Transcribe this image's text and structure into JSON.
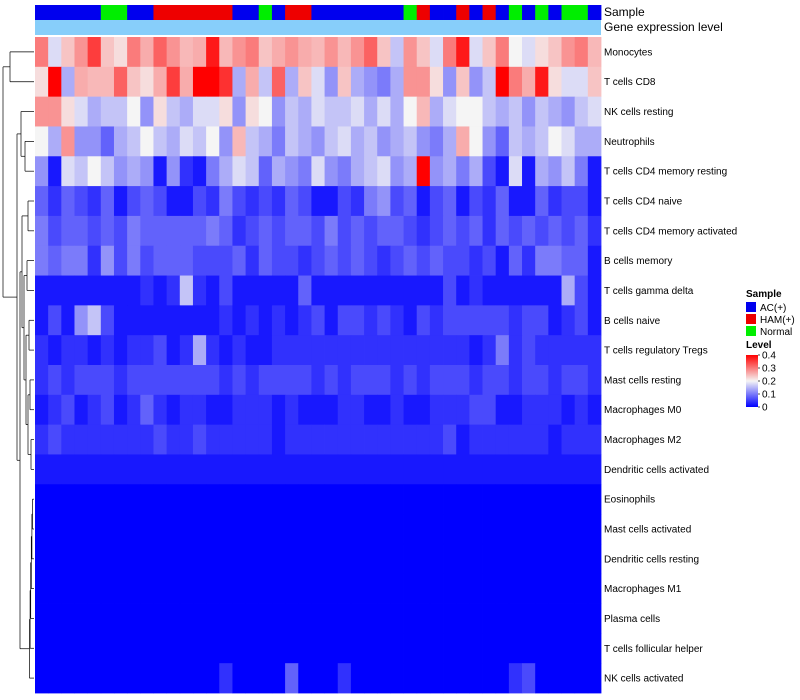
{
  "chart_data": {
    "type": "heatmap",
    "title": "",
    "annotation_labels": {
      "sample": "Sample",
      "gene_expression": "Gene expression level"
    },
    "rows": [
      "Monocytes",
      "T cells CD8",
      "NK cells resting",
      "Neutrophils",
      "T cells CD4 memory resting",
      "T cells CD4 naive",
      "T cells CD4 memory activated",
      "B cells memory",
      "T cells gamma delta",
      "B cells naive",
      "T cells regulatory  Tregs",
      "Mast cells resting",
      "Macrophages M0",
      "Macrophages M2",
      "Dendritic cells activated",
      "Eosinophils",
      "Mast cells activated",
      "Dendritic cells resting",
      "Macrophages M1",
      "Plasma cells",
      "T cells follicular helper",
      "NK cells activated"
    ],
    "column_groups": [
      "AC",
      "AC",
      "AC",
      "AC",
      "AC",
      "Normal",
      "Normal",
      "AC",
      "AC",
      "HAM",
      "HAM",
      "HAM",
      "HAM",
      "HAM",
      "HAM",
      "AC",
      "AC",
      "Normal",
      "AC",
      "HAM",
      "HAM",
      "AC",
      "AC",
      "AC",
      "AC",
      "AC",
      "AC",
      "AC",
      "Normal",
      "HAM",
      "AC",
      "AC",
      "HAM",
      "AC",
      "HAM",
      "AC",
      "Normal",
      "AC",
      "Normal",
      "AC",
      "Normal",
      "Normal",
      "AC"
    ],
    "values": [
      [
        0.3,
        0.18,
        0.24,
        0.28,
        0.35,
        0.24,
        0.22,
        0.3,
        0.26,
        0.32,
        0.28,
        0.25,
        0.26,
        0.38,
        0.25,
        0.28,
        0.3,
        0.24,
        0.26,
        0.28,
        0.26,
        0.25,
        0.28,
        0.25,
        0.28,
        0.32,
        0.24,
        0.16,
        0.28,
        0.24,
        0.18,
        0.3,
        0.38,
        0.18,
        0.24,
        0.3,
        0.2,
        0.18,
        0.22,
        0.24,
        0.28,
        0.3,
        0.25
      ],
      [
        0.22,
        0.4,
        0.14,
        0.26,
        0.25,
        0.25,
        0.32,
        0.24,
        0.22,
        0.26,
        0.35,
        0.26,
        0.4,
        0.4,
        0.36,
        0.14,
        0.26,
        0.16,
        0.32,
        0.14,
        0.24,
        0.18,
        0.12,
        0.24,
        0.14,
        0.12,
        0.1,
        0.14,
        0.28,
        0.28,
        0.22,
        0.12,
        0.24,
        0.12,
        0.16,
        0.4,
        0.3,
        0.26,
        0.38,
        0.22,
        0.18,
        0.18,
        0.24
      ],
      [
        0.28,
        0.28,
        0.22,
        0.18,
        0.14,
        0.16,
        0.16,
        0.2,
        0.12,
        0.22,
        0.16,
        0.14,
        0.18,
        0.18,
        0.22,
        0.12,
        0.22,
        0.2,
        0.12,
        0.16,
        0.14,
        0.18,
        0.16,
        0.16,
        0.18,
        0.14,
        0.18,
        0.14,
        0.2,
        0.25,
        0.14,
        0.18,
        0.2,
        0.2,
        0.16,
        0.14,
        0.16,
        0.12,
        0.16,
        0.14,
        0.12,
        0.16,
        0.18
      ],
      [
        0.2,
        0.14,
        0.28,
        0.12,
        0.12,
        0.08,
        0.14,
        0.16,
        0.2,
        0.16,
        0.14,
        0.18,
        0.16,
        0.2,
        0.12,
        0.25,
        0.16,
        0.14,
        0.1,
        0.16,
        0.14,
        0.12,
        0.16,
        0.18,
        0.14,
        0.16,
        0.12,
        0.14,
        0.16,
        0.12,
        0.1,
        0.14,
        0.26,
        0.2,
        0.12,
        0.08,
        0.16,
        0.14,
        0.16,
        0.2,
        0.18,
        0.14,
        0.14
      ],
      [
        0.12,
        0.02,
        0.18,
        0.16,
        0.2,
        0.16,
        0.12,
        0.14,
        0.12,
        0.02,
        0.12,
        0.04,
        0.02,
        0.1,
        0.14,
        0.18,
        0.16,
        0.08,
        0.14,
        0.12,
        0.1,
        0.18,
        0.12,
        0.1,
        0.14,
        0.16,
        0.18,
        0.12,
        0.14,
        0.4,
        0.12,
        0.14,
        0.1,
        0.14,
        0.06,
        0.02,
        0.18,
        0.02,
        0.14,
        0.12,
        0.16,
        0.1,
        0.02
      ],
      [
        0.08,
        0.04,
        0.08,
        0.06,
        0.04,
        0.08,
        0.02,
        0.06,
        0.08,
        0.06,
        0.02,
        0.02,
        0.06,
        0.04,
        0.1,
        0.06,
        0.04,
        0.06,
        0.04,
        0.08,
        0.06,
        0.02,
        0.02,
        0.06,
        0.04,
        0.1,
        0.12,
        0.06,
        0.08,
        0.02,
        0.06,
        0.08,
        0.02,
        0.06,
        0.04,
        0.08,
        0.02,
        0.02,
        0.08,
        0.04,
        0.06,
        0.06,
        0.02
      ],
      [
        0.1,
        0.06,
        0.08,
        0.08,
        0.06,
        0.08,
        0.06,
        0.1,
        0.08,
        0.08,
        0.08,
        0.08,
        0.08,
        0.1,
        0.08,
        0.04,
        0.06,
        0.08,
        0.06,
        0.08,
        0.08,
        0.06,
        0.1,
        0.06,
        0.08,
        0.06,
        0.08,
        0.08,
        0.06,
        0.04,
        0.06,
        0.08,
        0.06,
        0.08,
        0.04,
        0.08,
        0.06,
        0.08,
        0.06,
        0.08,
        0.06,
        0.08,
        0.04
      ],
      [
        0.1,
        0.08,
        0.1,
        0.1,
        0.04,
        0.12,
        0.06,
        0.1,
        0.06,
        0.08,
        0.08,
        0.08,
        0.06,
        0.06,
        0.06,
        0.08,
        0.04,
        0.08,
        0.06,
        0.06,
        0.04,
        0.06,
        0.08,
        0.06,
        0.08,
        0.06,
        0.04,
        0.06,
        0.08,
        0.06,
        0.08,
        0.06,
        0.06,
        0.04,
        0.06,
        0.02,
        0.08,
        0.04,
        0.1,
        0.1,
        0.08,
        0.08,
        0.02
      ],
      [
        0.02,
        0.02,
        0.02,
        0.02,
        0.02,
        0.02,
        0.02,
        0.02,
        0.04,
        0.02,
        0.04,
        0.16,
        0.04,
        0.02,
        0.06,
        0.02,
        0.02,
        0.02,
        0.02,
        0.02,
        0.08,
        0.02,
        0.02,
        0.02,
        0.02,
        0.02,
        0.02,
        0.02,
        0.02,
        0.02,
        0.02,
        0.06,
        0.02,
        0.04,
        0.02,
        0.02,
        0.02,
        0.02,
        0.02,
        0.02,
        0.14,
        0.06,
        0.02
      ],
      [
        0.02,
        0.06,
        0.02,
        0.12,
        0.16,
        0.06,
        0.02,
        0.02,
        0.02,
        0.02,
        0.02,
        0.02,
        0.02,
        0.02,
        0.04,
        0.02,
        0.04,
        0.02,
        0.04,
        0.02,
        0.04,
        0.06,
        0.02,
        0.06,
        0.06,
        0.04,
        0.06,
        0.04,
        0.02,
        0.06,
        0.04,
        0.06,
        0.06,
        0.06,
        0.06,
        0.06,
        0.04,
        0.06,
        0.06,
        0.02,
        0.04,
        0.06,
        0.02
      ],
      [
        0.04,
        0.02,
        0.04,
        0.04,
        0.02,
        0.04,
        0.02,
        0.04,
        0.04,
        0.06,
        0.02,
        0.04,
        0.14,
        0.04,
        0.02,
        0.04,
        0.02,
        0.02,
        0.04,
        0.04,
        0.04,
        0.04,
        0.04,
        0.04,
        0.04,
        0.04,
        0.04,
        0.04,
        0.04,
        0.04,
        0.04,
        0.04,
        0.04,
        0.02,
        0.04,
        0.1,
        0.04,
        0.06,
        0.04,
        0.04,
        0.04,
        0.04,
        0.04
      ],
      [
        0.04,
        0.06,
        0.04,
        0.06,
        0.06,
        0.06,
        0.04,
        0.06,
        0.06,
        0.06,
        0.06,
        0.06,
        0.06,
        0.06,
        0.04,
        0.06,
        0.04,
        0.06,
        0.06,
        0.06,
        0.06,
        0.04,
        0.06,
        0.04,
        0.06,
        0.06,
        0.06,
        0.04,
        0.06,
        0.04,
        0.06,
        0.06,
        0.06,
        0.04,
        0.06,
        0.06,
        0.04,
        0.06,
        0.06,
        0.04,
        0.06,
        0.06,
        0.04
      ],
      [
        0.02,
        0.04,
        0.06,
        0.02,
        0.04,
        0.06,
        0.02,
        0.04,
        0.08,
        0.04,
        0.02,
        0.04,
        0.04,
        0.02,
        0.02,
        0.04,
        0.04,
        0.04,
        0.02,
        0.04,
        0.02,
        0.02,
        0.02,
        0.04,
        0.04,
        0.02,
        0.02,
        0.04,
        0.02,
        0.02,
        0.04,
        0.04,
        0.04,
        0.06,
        0.06,
        0.02,
        0.02,
        0.04,
        0.04,
        0.04,
        0.02,
        0.04,
        0.02
      ],
      [
        0.04,
        0.06,
        0.04,
        0.04,
        0.04,
        0.04,
        0.04,
        0.04,
        0.04,
        0.06,
        0.04,
        0.04,
        0.06,
        0.04,
        0.04,
        0.04,
        0.04,
        0.04,
        0.02,
        0.04,
        0.04,
        0.04,
        0.04,
        0.04,
        0.04,
        0.04,
        0.04,
        0.04,
        0.04,
        0.04,
        0.04,
        0.06,
        0.02,
        0.04,
        0.04,
        0.04,
        0.04,
        0.04,
        0.04,
        0.02,
        0.04,
        0.04,
        0.04
      ],
      [
        0.02,
        0.02,
        0.02,
        0.02,
        0.02,
        0.02,
        0.02,
        0.02,
        0.02,
        0.02,
        0.02,
        0.02,
        0.02,
        0.02,
        0.02,
        0.02,
        0.02,
        0.02,
        0.02,
        0.02,
        0.02,
        0.02,
        0.02,
        0.02,
        0.02,
        0.02,
        0.02,
        0.02,
        0.02,
        0.02,
        0.02,
        0.02,
        0.02,
        0.02,
        0.02,
        0.02,
        0.02,
        0.02,
        0.02,
        0.02,
        0.02,
        0.02,
        0.02
      ],
      [
        0,
        0,
        0,
        0,
        0,
        0,
        0,
        0,
        0,
        0,
        0,
        0,
        0,
        0,
        0,
        0,
        0,
        0,
        0,
        0,
        0,
        0,
        0,
        0,
        0,
        0,
        0,
        0,
        0,
        0,
        0,
        0,
        0,
        0,
        0,
        0,
        0,
        0,
        0,
        0,
        0,
        0,
        0
      ],
      [
        0,
        0,
        0,
        0,
        0,
        0,
        0,
        0,
        0,
        0,
        0,
        0,
        0,
        0,
        0,
        0,
        0,
        0,
        0,
        0,
        0,
        0,
        0,
        0,
        0,
        0,
        0,
        0,
        0,
        0,
        0,
        0,
        0,
        0,
        0,
        0,
        0,
        0,
        0,
        0,
        0,
        0,
        0
      ],
      [
        0,
        0,
        0,
        0,
        0,
        0,
        0,
        0,
        0,
        0,
        0,
        0,
        0,
        0,
        0,
        0,
        0,
        0,
        0,
        0,
        0,
        0,
        0,
        0,
        0,
        0,
        0,
        0,
        0,
        0,
        0,
        0,
        0,
        0,
        0,
        0,
        0,
        0,
        0,
        0,
        0,
        0,
        0
      ],
      [
        0,
        0,
        0,
        0,
        0,
        0,
        0,
        0,
        0,
        0,
        0,
        0,
        0,
        0,
        0,
        0,
        0,
        0,
        0,
        0,
        0,
        0,
        0,
        0,
        0,
        0,
        0,
        0,
        0,
        0,
        0,
        0,
        0,
        0,
        0,
        0,
        0,
        0,
        0,
        0,
        0,
        0,
        0
      ],
      [
        0,
        0,
        0,
        0,
        0,
        0,
        0,
        0,
        0,
        0,
        0,
        0,
        0,
        0,
        0,
        0,
        0,
        0,
        0,
        0,
        0,
        0,
        0,
        0,
        0,
        0,
        0,
        0,
        0,
        0,
        0,
        0,
        0,
        0,
        0,
        0,
        0,
        0,
        0,
        0,
        0,
        0,
        0
      ],
      [
        0,
        0,
        0,
        0,
        0,
        0,
        0,
        0,
        0,
        0,
        0,
        0,
        0,
        0,
        0,
        0,
        0,
        0,
        0,
        0,
        0,
        0,
        0,
        0,
        0,
        0,
        0,
        0,
        0,
        0,
        0,
        0,
        0,
        0,
        0,
        0,
        0,
        0,
        0,
        0,
        0,
        0,
        0
      ],
      [
        0,
        0,
        0,
        0,
        0,
        0,
        0,
        0,
        0,
        0,
        0,
        0,
        0,
        0,
        0.04,
        0,
        0,
        0,
        0,
        0.08,
        0,
        0,
        0,
        0.04,
        0,
        0,
        0,
        0,
        0,
        0,
        0,
        0,
        0,
        0,
        0,
        0,
        0.04,
        0.06,
        0,
        0,
        0,
        0,
        0
      ]
    ],
    "sample_legend": {
      "title": "Sample",
      "entries": [
        {
          "key": "AC",
          "label": "AC(+)",
          "color": "#0000ee"
        },
        {
          "key": "HAM",
          "label": "HAM(+)",
          "color": "#ee0000"
        },
        {
          "key": "Normal",
          "label": "Normal",
          "color": "#00ee00"
        }
      ]
    },
    "level_legend": {
      "title": "Level",
      "min": 0,
      "max": 0.4,
      "ticks": [
        "0.4",
        "0.3",
        "0.2",
        "0.1",
        "0"
      ],
      "tick_values": [
        0.4,
        0.3,
        0.2,
        0.1,
        0
      ]
    },
    "colors": {
      "low": "#0000ff",
      "mid": "#f5f5f5",
      "high": "#ff0000",
      "expression_band": "#87cefa"
    }
  }
}
